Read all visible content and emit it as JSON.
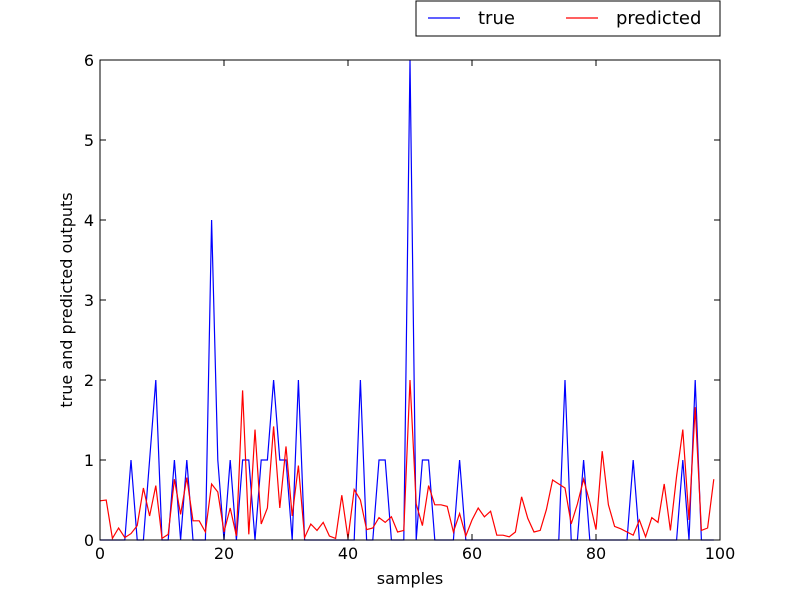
{
  "chart_data": {
    "type": "line",
    "xlabel": "samples",
    "ylabel": "true and predicted outputs",
    "xlim": [
      0,
      100
    ],
    "ylim": [
      0,
      6
    ],
    "x_ticks": [
      0,
      20,
      40,
      60,
      80,
      100
    ],
    "y_ticks": [
      0,
      1,
      2,
      3,
      4,
      5,
      6
    ],
    "grid": false,
    "legend_position": "top-right, above plot",
    "series": [
      {
        "name": "true",
        "color": "#0000ff",
        "values": [
          0,
          0,
          0,
          0,
          0,
          1,
          0,
          0,
          1,
          2,
          0,
          0,
          1,
          0,
          1,
          0,
          0,
          0,
          4,
          1,
          0,
          1,
          0,
          1,
          1,
          0,
          1,
          1,
          2,
          1,
          1,
          0,
          2,
          0,
          0,
          0,
          0,
          0,
          0,
          0,
          0,
          0,
          2,
          0,
          0,
          1,
          1,
          0,
          0,
          0,
          6,
          0,
          1,
          1,
          0,
          0,
          0,
          0,
          1,
          0,
          0,
          0,
          0,
          0,
          0,
          0,
          0,
          0,
          0,
          0,
          0,
          0,
          0,
          0,
          0,
          2,
          0,
          0,
          1,
          0,
          0,
          0,
          0,
          0,
          0,
          0,
          1,
          0,
          0,
          0,
          0,
          0,
          0,
          0,
          1,
          0,
          2,
          0,
          0,
          0
        ]
      },
      {
        "name": "predicted",
        "color": "#ff0000",
        "values": [
          0.49,
          0.5,
          0.02,
          0.15,
          0.03,
          0.08,
          0.18,
          0.65,
          0.3,
          0.68,
          0.02,
          0.07,
          0.76,
          0.32,
          0.78,
          0.24,
          0.24,
          0.1,
          0.7,
          0.6,
          0.1,
          0.4,
          0.05,
          1.87,
          0.07,
          1.38,
          0.2,
          0.4,
          1.42,
          0.4,
          1.17,
          0.3,
          0.93,
          0.03,
          0.2,
          0.12,
          0.22,
          0.05,
          0.02,
          0.56,
          0.02,
          0.63,
          0.5,
          0.13,
          0.15,
          0.28,
          0.22,
          0.29,
          0.1,
          0.12,
          2.0,
          0.45,
          0.18,
          0.68,
          0.44,
          0.44,
          0.42,
          0.1,
          0.33,
          0.05,
          0.25,
          0.4,
          0.29,
          0.36,
          0.06,
          0.06,
          0.04,
          0.1,
          0.54,
          0.27,
          0.1,
          0.12,
          0.38,
          0.75,
          0.7,
          0.65,
          0.2,
          0.45,
          0.76,
          0.47,
          0.13,
          1.11,
          0.44,
          0.17,
          0.14,
          0.1,
          0.06,
          0.25,
          0.04,
          0.28,
          0.22,
          0.7,
          0.12,
          0.8,
          1.38,
          0.25,
          1.66,
          0.12,
          0.15,
          0.76
        ]
      }
    ]
  }
}
